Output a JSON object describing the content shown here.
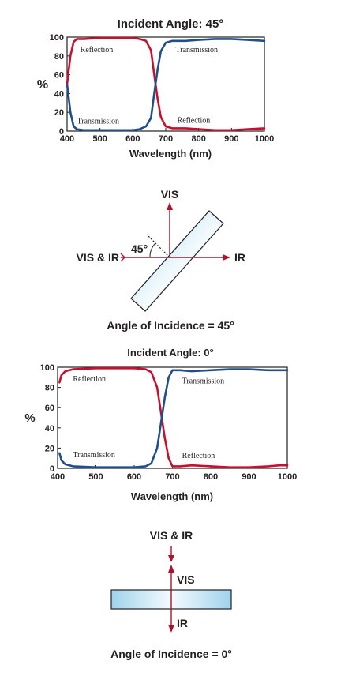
{
  "colors": {
    "reflection": "#c8102e",
    "transmission": "#1f4e8c",
    "axis": "#231f20",
    "ray": "#b0112b",
    "glass_fill": "#dbeef8",
    "glass_stroke": "#231f20"
  },
  "chart_data": [
    {
      "type": "line",
      "title": "Incident Angle: 45°",
      "xlabel": "Wavelength (nm)",
      "ylabel": "%",
      "xlim": [
        400,
        1000
      ],
      "ylim": [
        0,
        100
      ],
      "xticks": [
        "400",
        "500",
        "600",
        "700",
        "800",
        "900",
        "1000"
      ],
      "yticks": [
        "0",
        "20",
        "40",
        "60",
        "80",
        "100"
      ],
      "grid": false,
      "series": [
        {
          "name": "Reflection",
          "color": "#c8102e",
          "x": [
            400,
            410,
            420,
            430,
            450,
            500,
            550,
            600,
            620,
            640,
            655,
            665,
            675,
            685,
            700,
            720,
            740,
            760,
            800,
            850,
            900,
            950,
            1000
          ],
          "y": [
            50,
            80,
            95,
            98,
            98,
            99,
            99,
            99,
            98,
            96,
            86,
            60,
            35,
            15,
            5,
            3,
            3,
            3,
            2,
            1,
            1,
            2,
            3
          ]
        },
        {
          "name": "Transmission",
          "color": "#1f4e8c",
          "x": [
            400,
            410,
            420,
            430,
            450,
            500,
            550,
            600,
            620,
            640,
            655,
            665,
            675,
            685,
            700,
            720,
            740,
            760,
            800,
            850,
            900,
            950,
            1000
          ],
          "y": [
            50,
            20,
            5,
            2,
            1,
            1,
            1,
            1,
            2,
            5,
            14,
            40,
            65,
            85,
            94,
            96,
            96,
            96,
            97,
            98,
            98,
            97,
            96
          ]
        }
      ],
      "annotations": [
        {
          "text": "Reflection",
          "x": 440,
          "y": 84
        },
        {
          "text": "Transmission",
          "x": 730,
          "y": 84
        },
        {
          "text": "Transmission",
          "x": 430,
          "y": 8
        },
        {
          "text": "Reflection",
          "x": 735,
          "y": 9
        }
      ]
    },
    {
      "type": "line",
      "title": "Incident Angle: 0°",
      "xlabel": "Wavelength (nm)",
      "ylabel": "%",
      "xlim": [
        400,
        1000
      ],
      "ylim": [
        0,
        100
      ],
      "xticks": [
        "400",
        "500",
        "600",
        "700",
        "800",
        "900",
        "1000"
      ],
      "yticks": [
        "0",
        "20",
        "40",
        "60",
        "80",
        "100"
      ],
      "grid": false,
      "series": [
        {
          "name": "Reflection",
          "color": "#c8102e",
          "x": [
            405,
            410,
            420,
            440,
            500,
            550,
            600,
            630,
            645,
            660,
            670,
            680,
            690,
            700,
            720,
            750,
            800,
            850,
            900,
            950,
            980,
            1000
          ],
          "y": [
            85,
            92,
            96,
            98,
            99,
            99,
            99,
            98,
            95,
            80,
            55,
            30,
            10,
            2,
            2,
            3,
            2,
            1,
            1,
            2,
            3,
            3
          ]
        },
        {
          "name": "Transmission",
          "color": "#1f4e8c",
          "x": [
            405,
            410,
            420,
            440,
            500,
            550,
            600,
            630,
            645,
            660,
            670,
            680,
            690,
            700,
            720,
            750,
            800,
            850,
            900,
            950,
            980,
            1000
          ],
          "y": [
            15,
            8,
            4,
            2,
            1,
            1,
            1,
            2,
            5,
            20,
            45,
            70,
            90,
            97,
            97,
            96,
            97,
            98,
            98,
            97,
            97,
            97
          ]
        }
      ],
      "annotations": [
        {
          "text": "Reflection",
          "x": 440,
          "y": 86
        },
        {
          "text": "Transmission",
          "x": 725,
          "y": 84
        },
        {
          "text": "Transmission",
          "x": 440,
          "y": 11
        },
        {
          "text": "Reflection",
          "x": 725,
          "y": 10
        }
      ]
    }
  ],
  "diagram45": {
    "label_top": "VIS",
    "label_left": "VIS & IR",
    "label_right": "IR",
    "angle_label": "45°",
    "caption": "Angle of Incidence = 45°"
  },
  "diagram0": {
    "label_top": "VIS & IR",
    "label_reflect": "VIS",
    "label_bottom": "IR",
    "caption": "Angle of Incidence = 0°"
  }
}
